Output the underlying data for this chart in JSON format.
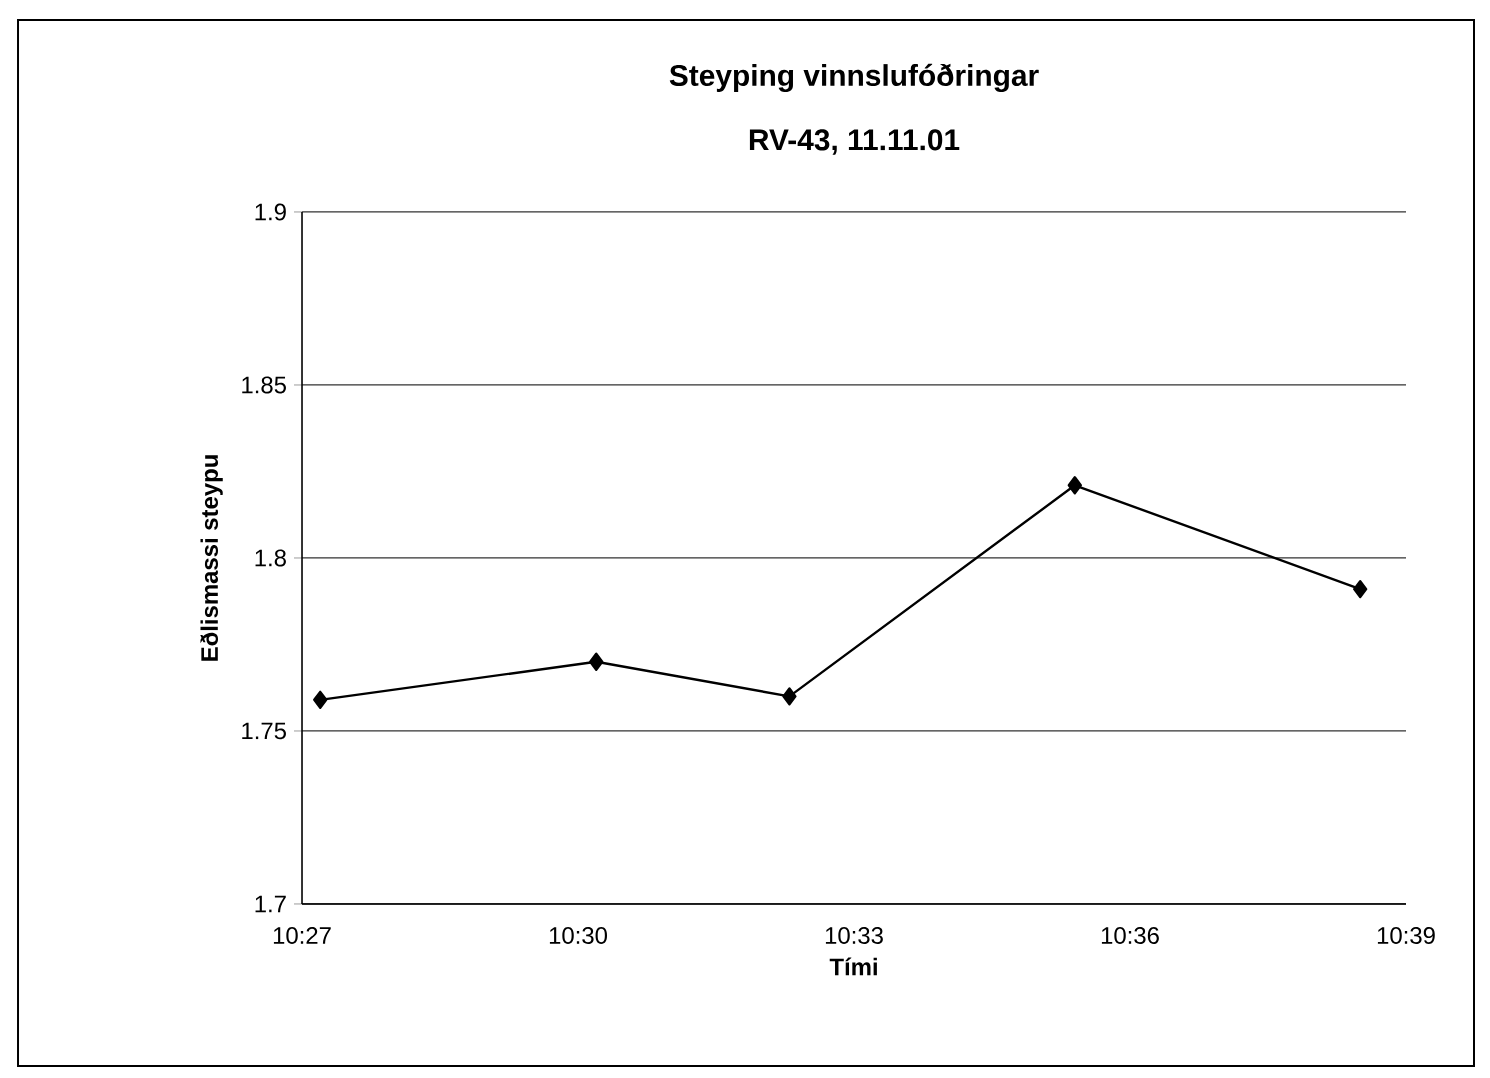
{
  "chart_data": {
    "type": "line",
    "title": "Steyping vinnslufóðringar",
    "subtitle": "RV-43, 11.11.01",
    "xlabel": "Tími",
    "ylabel": "Eðlismassi steypu",
    "x": [
      10.4533,
      10.5033,
      10.5383,
      10.59,
      10.6417
    ],
    "series": [
      {
        "color": "#000000",
        "values": [
          1.759,
          1.77,
          1.76,
          1.821,
          1.791
        ]
      }
    ],
    "xlim": [
      10.45,
      10.65
    ],
    "xticks": [
      {
        "value": 10.45,
        "label": "10:27"
      },
      {
        "value": 10.5,
        "label": "10:30"
      },
      {
        "value": 10.55,
        "label": "10:33"
      },
      {
        "value": 10.6,
        "label": "10:36"
      },
      {
        "value": 10.65,
        "label": "10:39"
      }
    ],
    "ylim": [
      1.7,
      1.9
    ],
    "yticks": [
      1.7,
      1.75,
      1.8,
      1.85,
      1.9
    ],
    "grid": "y",
    "marker": "diamond",
    "line_style": "solid"
  }
}
